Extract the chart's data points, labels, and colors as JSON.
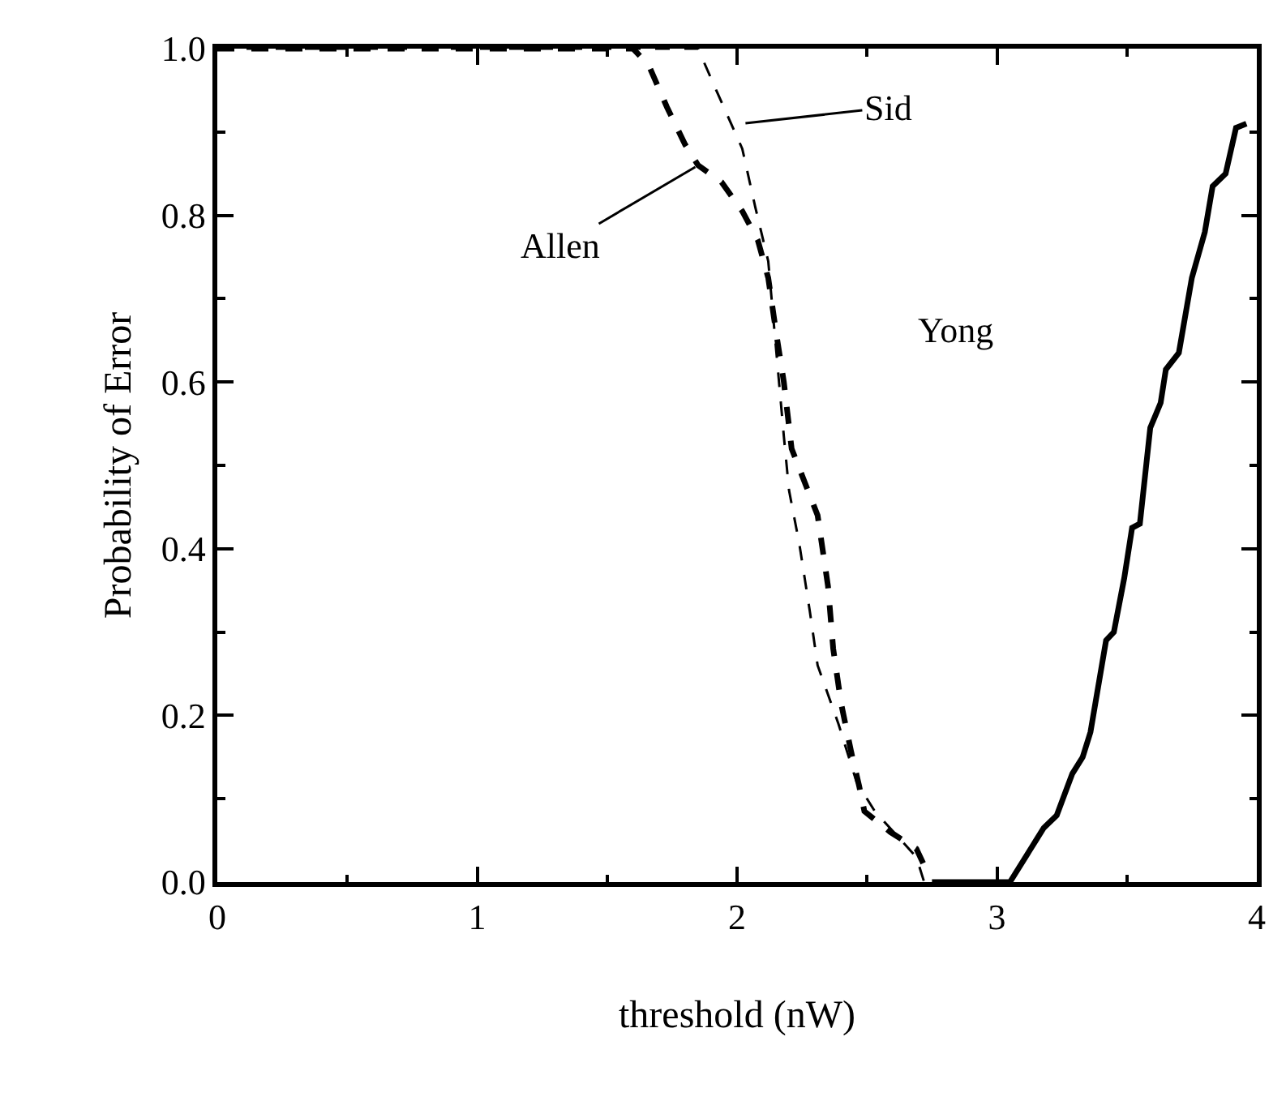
{
  "chart_data": {
    "type": "line",
    "xlabel": "threshold (nW)",
    "ylabel": "Probability of Error",
    "xlim": [
      0,
      4
    ],
    "ylim": [
      0,
      1.0
    ],
    "xticks": [
      0,
      1,
      2,
      3,
      4
    ],
    "yticks": [
      {
        "value": 0,
        "label": "0.0"
      },
      0.2,
      0.4,
      0.6,
      0.8,
      {
        "value": 1,
        "label": "1.0"
      }
    ],
    "grid": false,
    "marker": "none",
    "series": [
      {
        "color": "#000000",
        "line_style": "dashed",
        "x": [
          0,
          1.6,
          1.66,
          1.73,
          1.8,
          1.85,
          1.94,
          2.02,
          2.08,
          2.12,
          2.15,
          2.18,
          2.21,
          2.31,
          2.35,
          2.37,
          2.4,
          2.44,
          2.47,
          2.49,
          2.59,
          2.69,
          2.72
        ],
        "values": [
          1.0,
          1.0,
          0.98,
          0.93,
          0.885,
          0.86,
          0.84,
          0.805,
          0.77,
          0.725,
          0.66,
          0.6,
          0.52,
          0.44,
          0.355,
          0.28,
          0.215,
          0.155,
          0.115,
          0.085,
          0.06,
          0.04,
          0.02
        ]
      },
      {
        "color": "#000000",
        "line_style": "dashed",
        "x": [
          0,
          1.85,
          1.92,
          2.02,
          2.07,
          2.12,
          2.18,
          2.2,
          2.24,
          2.28,
          2.31,
          2.39,
          2.46,
          2.53,
          2.69,
          2.72
        ],
        "values": [
          1.0,
          1.0,
          0.95,
          0.88,
          0.81,
          0.745,
          0.535,
          0.47,
          0.405,
          0.325,
          0.26,
          0.19,
          0.12,
          0.085,
          0.03,
          0.0
        ]
      },
      {
        "color": "#000000",
        "line_style": "solid",
        "x": [
          2.75,
          3.05,
          3.15,
          3.18,
          3.23,
          3.29,
          3.33,
          3.36,
          3.42,
          3.45,
          3.49,
          3.52,
          3.55,
          3.59,
          3.63,
          3.65,
          3.7,
          3.75,
          3.8,
          3.83,
          3.88,
          3.92,
          3.96
        ],
        "values": [
          0,
          0,
          0.05,
          0.065,
          0.08,
          0.13,
          0.15,
          0.18,
          0.29,
          0.3,
          0.365,
          0.425,
          0.43,
          0.545,
          0.575,
          0.615,
          0.635,
          0.725,
          0.78,
          0.835,
          0.85,
          0.905,
          0.91
        ]
      }
    ],
    "annotations": [
      {
        "text": "Allen",
        "x": 1.85,
        "y": 0.86
      },
      "Sid",
      "Yong"
    ]
  }
}
